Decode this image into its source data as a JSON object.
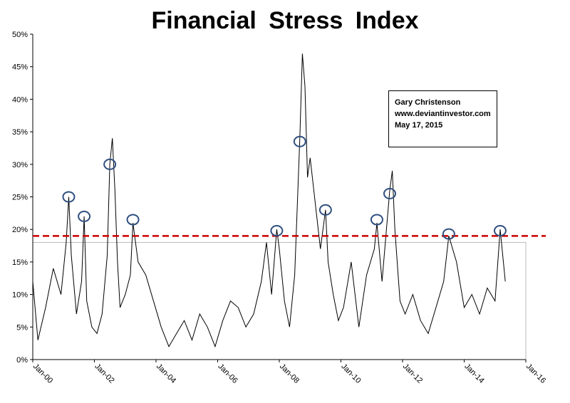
{
  "chart_data": {
    "type": "line",
    "title": "Financial Stress Index",
    "xlabel": "",
    "ylabel": "",
    "ylim": [
      0,
      50
    ],
    "xlim": [
      "2000-01",
      "2016-01"
    ],
    "y_ticks": [
      "0%",
      "5%",
      "10%",
      "15%",
      "20%",
      "25%",
      "30%",
      "35%",
      "40%",
      "45%",
      "50%"
    ],
    "x_ticks": [
      "Jan-00",
      "Jan-02",
      "Jan-04",
      "Jan-06",
      "Jan-08",
      "Jan-10",
      "Jan-12",
      "Jan-14",
      "Jan-16"
    ],
    "threshold": {
      "value": 19,
      "color": "#cc0000",
      "style": "dashed"
    },
    "grid": false,
    "line_color": "#000000",
    "circle_color": "#2f4f7f",
    "series": [
      {
        "x": [
          "2000-01",
          "2000-03",
          "2000-06",
          "2000-09",
          "2000-12",
          "2001-02",
          "2001-03",
          "2001-04",
          "2001-06",
          "2001-08",
          "2001-09",
          "2001-10",
          "2001-12",
          "2002-02",
          "2002-04",
          "2002-06",
          "2002-07",
          "2002-08",
          "2002-09",
          "2002-10",
          "2002-11",
          "2003-01",
          "2003-03",
          "2003-04",
          "2003-06",
          "2003-09",
          "2003-12",
          "2004-03",
          "2004-06",
          "2004-09",
          "2004-12",
          "2005-03",
          "2005-06",
          "2005-09",
          "2005-12",
          "2006-03",
          "2006-06",
          "2006-09",
          "2006-12",
          "2007-03",
          "2007-06",
          "2007-08",
          "2007-10",
          "2007-12",
          "2008-01",
          "2008-03",
          "2008-05",
          "2008-07",
          "2008-09",
          "2008-10",
          "2008-11",
          "2008-12",
          "2009-01",
          "2009-03",
          "2009-05",
          "2009-07",
          "2009-08",
          "2009-10",
          "2009-12",
          "2010-02",
          "2010-05",
          "2010-08",
          "2010-11",
          "2011-02",
          "2011-03",
          "2011-05",
          "2011-08",
          "2011-09",
          "2011-10",
          "2011-12",
          "2012-02",
          "2012-05",
          "2012-08",
          "2012-11",
          "2013-02",
          "2013-05",
          "2013-07",
          "2013-10",
          "2014-01",
          "2014-04",
          "2014-07",
          "2014-10",
          "2015-01",
          "2015-03",
          "2015-05"
        ],
        "y": [
          12,
          3,
          8,
          14,
          10,
          18,
          25,
          16,
          7,
          12,
          22,
          9,
          5,
          4,
          7,
          16,
          30,
          34,
          26,
          15,
          8,
          10,
          13,
          21,
          15,
          13,
          9,
          5,
          2,
          4,
          6,
          3,
          7,
          5,
          2,
          6,
          9,
          8,
          5,
          7,
          12,
          18,
          10,
          20,
          17,
          9,
          5,
          13,
          34,
          47,
          42,
          28,
          31,
          24,
          17,
          23,
          15,
          10,
          6,
          8,
          15,
          5,
          13,
          17,
          21,
          12,
          26,
          29,
          20,
          9,
          7,
          10,
          6,
          4,
          8,
          12,
          19,
          15,
          8,
          10,
          7,
          11,
          9,
          20,
          12
        ]
      }
    ],
    "circles": [
      {
        "date": "2001-03",
        "value": 25
      },
      {
        "date": "2001-09",
        "value": 22
      },
      {
        "date": "2002-07",
        "value": 30
      },
      {
        "date": "2003-04",
        "value": 21.5
      },
      {
        "date": "2007-12",
        "value": 19.8
      },
      {
        "date": "2008-09",
        "value": 33.5
      },
      {
        "date": "2009-07",
        "value": 23
      },
      {
        "date": "2011-03",
        "value": 21.5
      },
      {
        "date": "2011-08",
        "value": 25.5
      },
      {
        "date": "2013-07",
        "value": 19.3
      },
      {
        "date": "2015-03",
        "value": 19.8
      }
    ]
  },
  "annotation": {
    "line1": "Gary Christenson",
    "line2": "www.deviantinvestor.com",
    "line3": "May 17, 2015"
  }
}
